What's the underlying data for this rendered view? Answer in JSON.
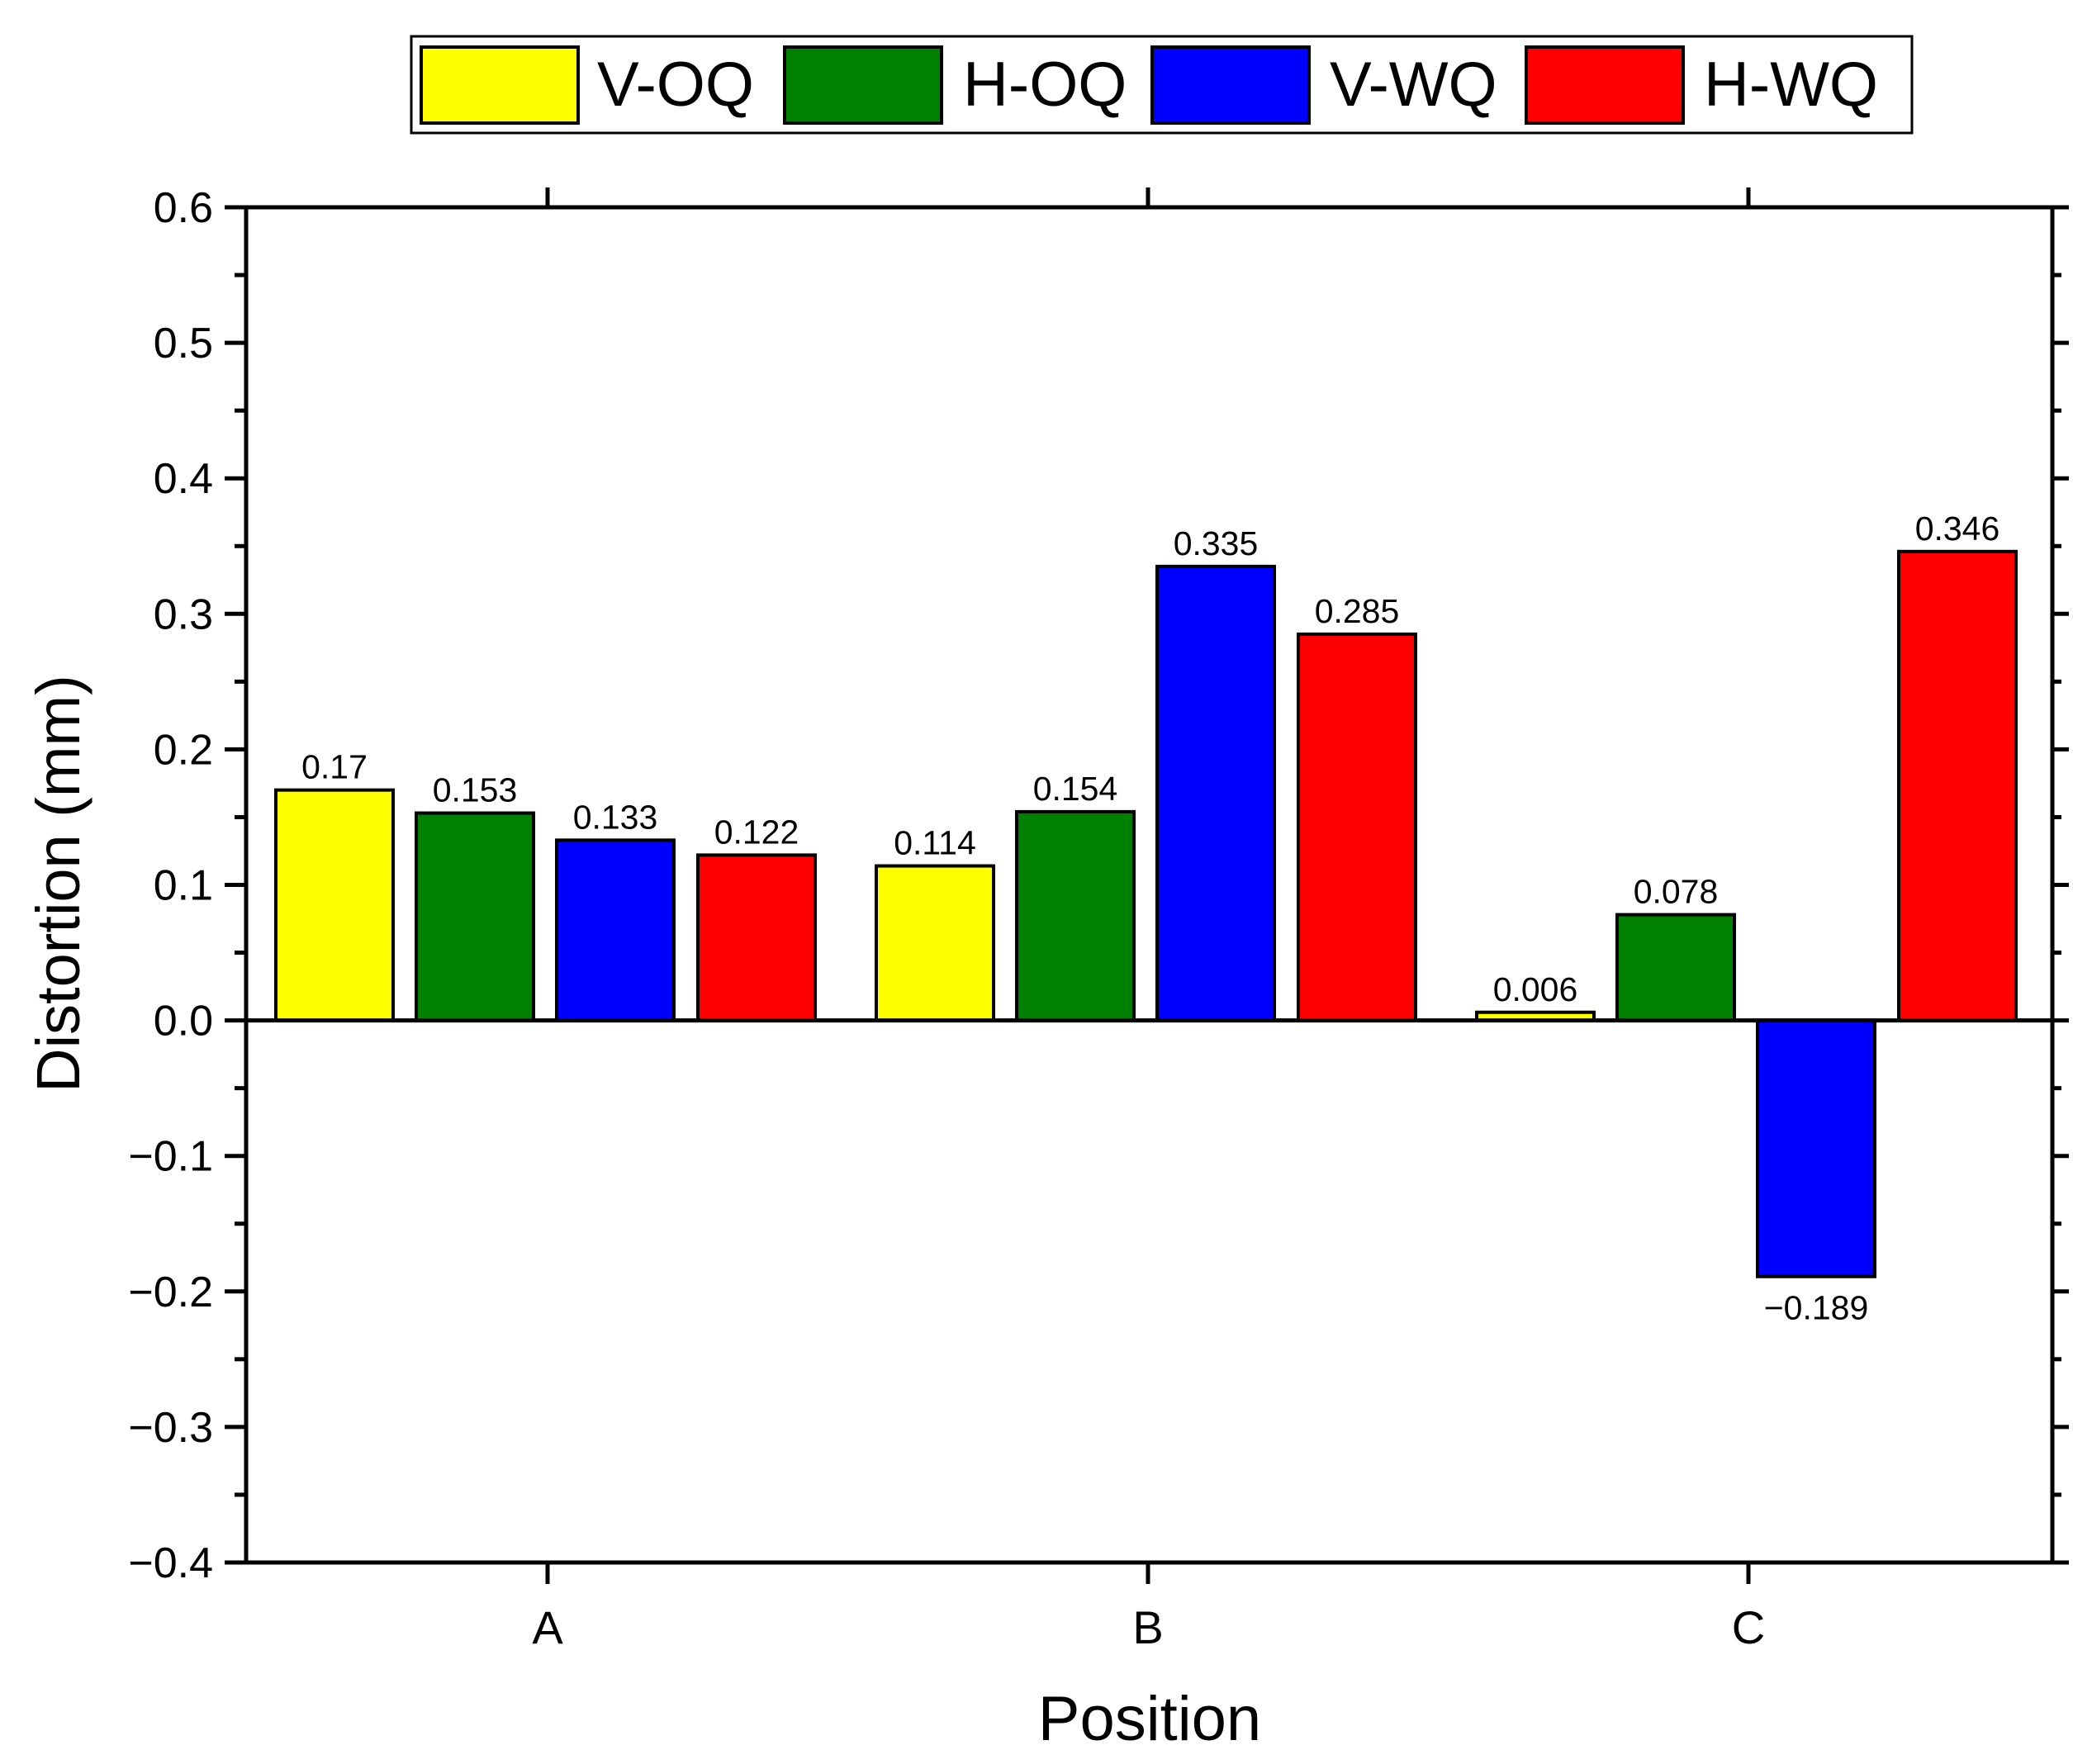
{
  "chart_data": {
    "type": "bar",
    "title": "",
    "xlabel": "Position",
    "ylabel": "Distortion (mm)",
    "categories": [
      "A",
      "B",
      "C"
    ],
    "ylim": [
      -0.4,
      0.6
    ],
    "yticks": [
      "0.6",
      "0.5",
      "0.4",
      "0.3",
      "0.2",
      "0.1",
      "0.0",
      "−0.1",
      "−0.2",
      "−0.3",
      "−0.4"
    ],
    "ytick_values": [
      0.6,
      0.5,
      0.4,
      0.3,
      0.2,
      0.1,
      0.0,
      -0.1,
      -0.2,
      -0.3,
      -0.4
    ],
    "grid": false,
    "legend_position": "top",
    "series": [
      {
        "name": "V-OQ",
        "color": "#ffff00",
        "values": [
          0.17,
          0.114,
          0.006
        ],
        "labels": [
          "0.17",
          "0.114",
          "0.006"
        ]
      },
      {
        "name": "H-OQ",
        "color": "#008000",
        "values": [
          0.153,
          0.154,
          0.078
        ],
        "labels": [
          "0.153",
          "0.154",
          "0.078"
        ]
      },
      {
        "name": "V-WQ",
        "color": "#0000ff",
        "values": [
          0.133,
          0.335,
          -0.189
        ],
        "labels": [
          "0.133",
          "0.335",
          "−0.189"
        ]
      },
      {
        "name": "H-WQ",
        "color": "#ff0000",
        "values": [
          0.122,
          0.285,
          0.346
        ],
        "labels": [
          "0.122",
          "0.285",
          "0.346"
        ]
      }
    ]
  }
}
